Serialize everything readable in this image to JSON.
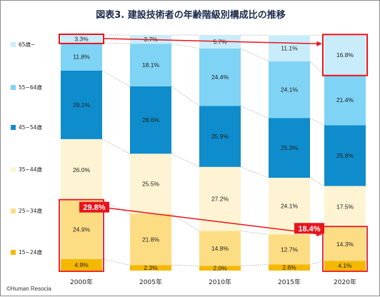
{
  "title": "図表3. 建設技術者の年齢階級別構成比の推移",
  "copyright": "©Human Resocia",
  "colors": {
    "accent_red": "#e8141c",
    "guide_line": "#9a9a9a"
  },
  "chart_data": {
    "type": "bar",
    "stacked": true,
    "categories": [
      "2000年",
      "2005年",
      "2010年",
      "2015年",
      "2020年"
    ],
    "series": [
      {
        "name": "15~24歳",
        "color": "#f5b800",
        "values": [
          4.9,
          2.3,
          2.0,
          2.6,
          4.1
        ]
      },
      {
        "name": "25~34歳",
        "color": "#fddd84",
        "values": [
          24.9,
          21.8,
          14.8,
          12.7,
          14.3
        ]
      },
      {
        "name": "35~44歳",
        "color": "#fef3d2",
        "values": [
          26.0,
          25.5,
          27.2,
          24.1,
          17.5
        ]
      },
      {
        "name": "45~54歳",
        "color": "#0f8ccc",
        "values": [
          29.1,
          28.6,
          25.9,
          25.3,
          25.8
        ]
      },
      {
        "name": "55~64歳",
        "color": "#7fd3f5",
        "values": [
          11.8,
          18.1,
          24.4,
          24.1,
          21.4
        ]
      },
      {
        "name": "65歳~",
        "color": "#c9ecfb",
        "values": [
          3.3,
          3.7,
          5.7,
          11.1,
          16.8
        ]
      }
    ],
    "ylim": [
      0,
      100
    ],
    "legend_position": "left",
    "annotations": [
      {
        "text": "29.8%",
        "category": "2000年",
        "note_series": [
          "15~24歳",
          "25~34歳"
        ]
      },
      {
        "text": "18.4%",
        "category": "2020年",
        "note_series": [
          "15~24歳",
          "25~34歳"
        ]
      }
    ]
  }
}
